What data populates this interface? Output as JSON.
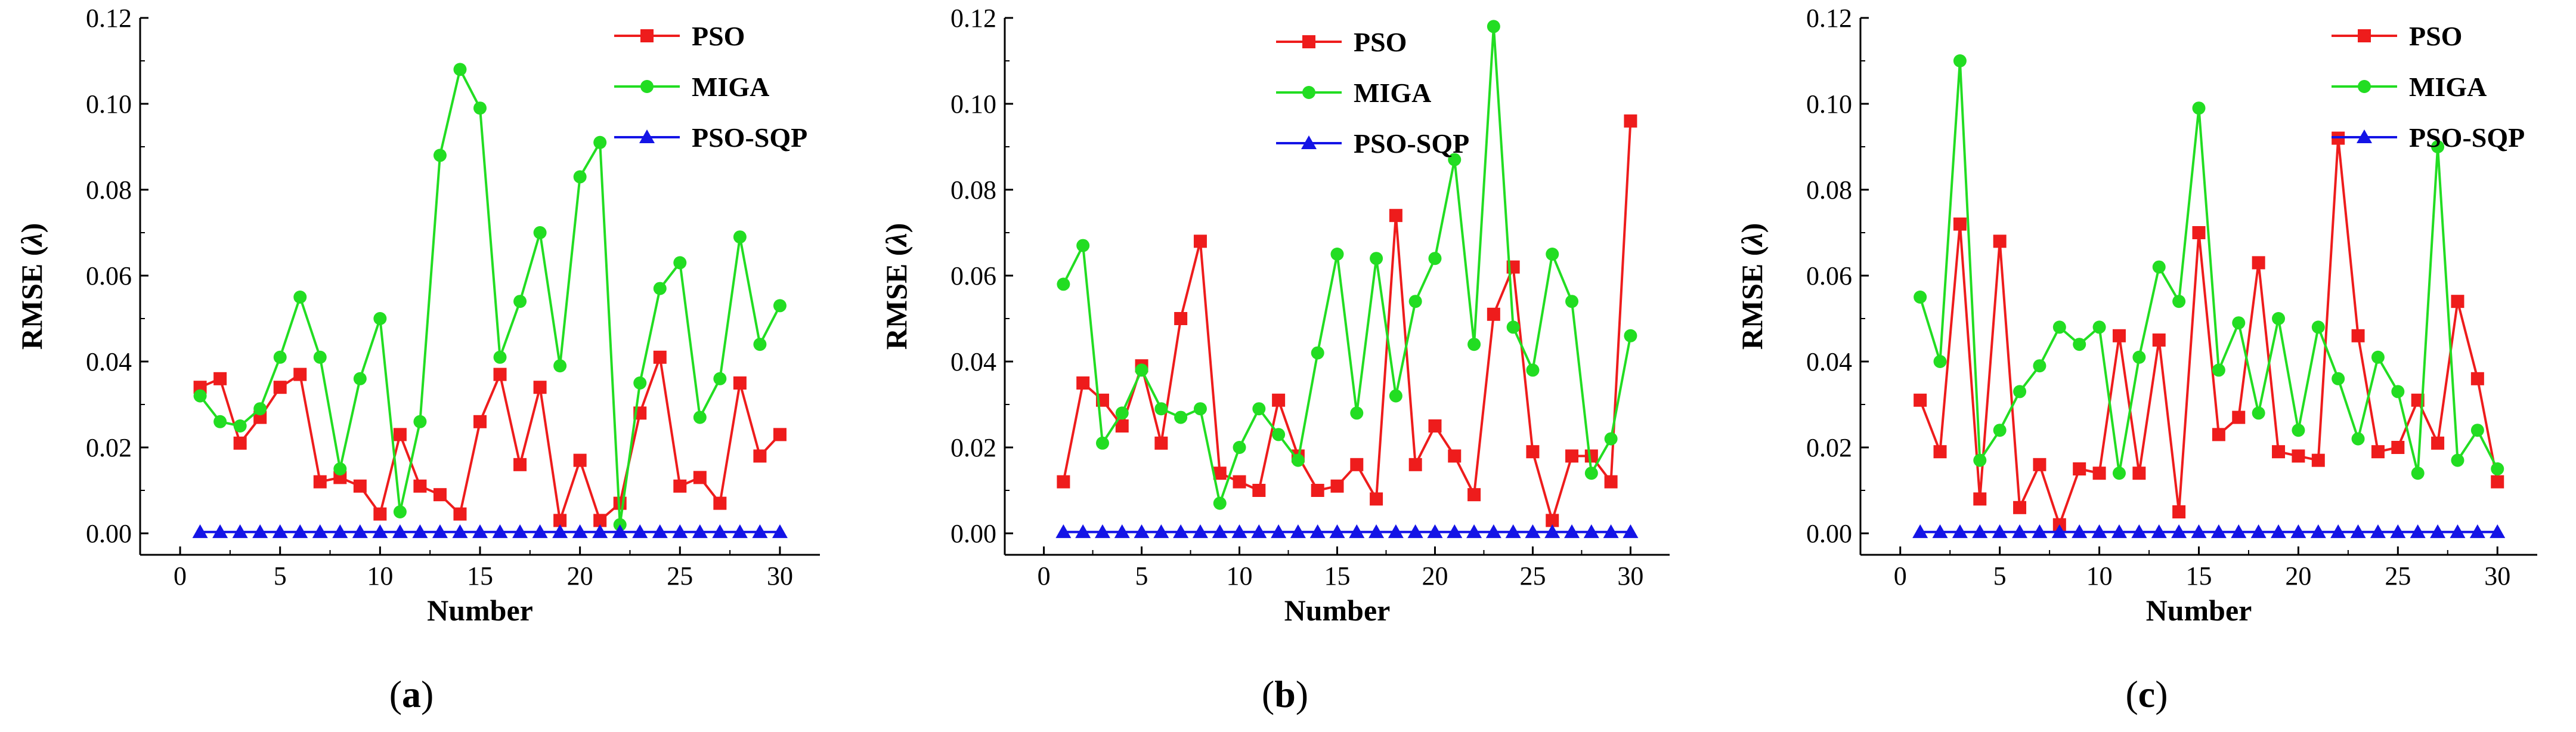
{
  "figure": {
    "panels": [
      "a",
      "b",
      "c"
    ]
  },
  "chart_data": [
    {
      "type": "line",
      "panel": "a",
      "caption_letter": "a",
      "xlabel": "Number",
      "ylabel_main": "RMSE (",
      "ylabel_sym": "λ",
      "ylabel_end": ")",
      "xlim": [
        -2,
        32
      ],
      "ylim": [
        -0.005,
        0.12
      ],
      "xticks": [
        0,
        5,
        10,
        15,
        20,
        25,
        30
      ],
      "yticks": [
        0.0,
        0.02,
        0.04,
        0.06,
        0.08,
        0.1,
        0.12
      ],
      "ytick_labels": [
        "0.00",
        "0.02",
        "0.04",
        "0.06",
        "0.08",
        "0.10",
        "0.12"
      ],
      "x": [
        1,
        2,
        3,
        4,
        5,
        6,
        7,
        8,
        9,
        10,
        11,
        12,
        13,
        14,
        15,
        16,
        17,
        18,
        19,
        20,
        21,
        22,
        23,
        24,
        25,
        26,
        27,
        28,
        29,
        30
      ],
      "series": [
        {
          "name": "PSO",
          "color": "#ee1c1c",
          "marker": "square",
          "values": [
            0.034,
            0.036,
            0.021,
            0.027,
            0.034,
            0.037,
            0.012,
            0.013,
            0.011,
            0.0045,
            0.023,
            0.011,
            0.009,
            0.0045,
            0.026,
            0.037,
            0.016,
            0.034,
            0.003,
            0.017,
            0.003,
            0.007,
            0.028,
            0.041,
            0.011,
            0.013,
            0.007,
            0.035,
            0.018,
            0.023
          ]
        },
        {
          "name": "MIGA",
          "color": "#22dd22",
          "marker": "circle",
          "values": [
            0.032,
            0.026,
            0.025,
            0.029,
            0.041,
            0.055,
            0.041,
            0.015,
            0.036,
            0.05,
            0.005,
            0.026,
            0.088,
            0.108,
            0.099,
            0.041,
            0.054,
            0.07,
            0.039,
            0.083,
            0.091,
            0.002,
            0.035,
            0.057,
            0.063,
            0.027,
            0.036,
            0.069,
            0.044,
            0.053
          ]
        },
        {
          "name": "PSO-SQP",
          "color": "#1414e6",
          "marker": "triangle",
          "values": [
            0.0003,
            0.0003,
            0.0003,
            0.0003,
            0.0003,
            0.0003,
            0.0003,
            0.0003,
            0.0003,
            0.0003,
            0.0003,
            0.0003,
            0.0003,
            0.0003,
            0.0003,
            0.0003,
            0.0003,
            0.0003,
            0.0003,
            0.0003,
            0.0003,
            0.0003,
            0.0003,
            0.0003,
            0.0003,
            0.0003,
            0.0003,
            0.0003,
            0.0003,
            0.0003
          ]
        }
      ],
      "legend_position": "top-right"
    },
    {
      "type": "line",
      "panel": "b",
      "caption_letter": "b",
      "xlabel": "Number",
      "ylabel_main": "RMSE (",
      "ylabel_sym": "λ",
      "ylabel_end": ")",
      "xlim": [
        -2,
        32
      ],
      "ylim": [
        -0.005,
        0.12
      ],
      "xticks": [
        0,
        5,
        10,
        15,
        20,
        25,
        30
      ],
      "yticks": [
        0.0,
        0.02,
        0.04,
        0.06,
        0.08,
        0.1,
        0.12
      ],
      "ytick_labels": [
        "0.00",
        "0.02",
        "0.04",
        "0.06",
        "0.08",
        "0.10",
        "0.12"
      ],
      "x": [
        1,
        2,
        3,
        4,
        5,
        6,
        7,
        8,
        9,
        10,
        11,
        12,
        13,
        14,
        15,
        16,
        17,
        18,
        19,
        20,
        21,
        22,
        23,
        24,
        25,
        26,
        27,
        28,
        29,
        30
      ],
      "series": [
        {
          "name": "PSO",
          "color": "#ee1c1c",
          "marker": "square",
          "values": [
            0.012,
            0.035,
            0.031,
            0.025,
            0.039,
            0.021,
            0.05,
            0.068,
            0.014,
            0.012,
            0.01,
            0.031,
            0.018,
            0.01,
            0.011,
            0.016,
            0.008,
            0.074,
            0.016,
            0.025,
            0.018,
            0.009,
            0.051,
            0.062,
            0.019,
            0.003,
            0.018,
            0.018,
            0.012,
            0.096
          ]
        },
        {
          "name": "MIGA",
          "color": "#22dd22",
          "marker": "circle",
          "values": [
            0.058,
            0.067,
            0.021,
            0.028,
            0.038,
            0.029,
            0.027,
            0.029,
            0.007,
            0.02,
            0.029,
            0.023,
            0.017,
            0.042,
            0.065,
            0.028,
            0.064,
            0.032,
            0.054,
            0.064,
            0.087,
            0.044,
            0.118,
            0.048,
            0.038,
            0.065,
            0.054,
            0.014,
            0.022,
            0.046
          ]
        },
        {
          "name": "PSO-SQP",
          "color": "#1414e6",
          "marker": "triangle",
          "values": [
            0.0003,
            0.0003,
            0.0003,
            0.0003,
            0.0003,
            0.0003,
            0.0003,
            0.0003,
            0.0003,
            0.0003,
            0.0003,
            0.0003,
            0.0003,
            0.0003,
            0.0003,
            0.0003,
            0.0003,
            0.0003,
            0.0003,
            0.0003,
            0.0003,
            0.0003,
            0.0003,
            0.0003,
            0.0003,
            0.0003,
            0.0003,
            0.0003,
            0.0003,
            0.0003
          ]
        }
      ],
      "legend_position": "top-right"
    },
    {
      "type": "line",
      "panel": "c",
      "caption_letter": "c",
      "xlabel": "Number",
      "ylabel_main": "RMSE (",
      "ylabel_sym": "λ",
      "ylabel_end": ")",
      "xlim": [
        -2,
        32
      ],
      "ylim": [
        -0.005,
        0.12
      ],
      "xticks": [
        0,
        5,
        10,
        15,
        20,
        25,
        30
      ],
      "yticks": [
        0.0,
        0.02,
        0.04,
        0.06,
        0.08,
        0.1,
        0.12
      ],
      "ytick_labels": [
        "0.00",
        "0.02",
        "0.04",
        "0.06",
        "0.08",
        "0.10",
        "0.12"
      ],
      "x": [
        1,
        2,
        3,
        4,
        5,
        6,
        7,
        8,
        9,
        10,
        11,
        12,
        13,
        14,
        15,
        16,
        17,
        18,
        19,
        20,
        21,
        22,
        23,
        24,
        25,
        26,
        27,
        28,
        29,
        30
      ],
      "series": [
        {
          "name": "PSO",
          "color": "#ee1c1c",
          "marker": "square",
          "values": [
            0.031,
            0.019,
            0.072,
            0.008,
            0.068,
            0.006,
            0.016,
            0.002,
            0.015,
            0.014,
            0.046,
            0.014,
            0.045,
            0.005,
            0.07,
            0.023,
            0.027,
            0.063,
            0.019,
            0.018,
            0.017,
            0.092,
            0.046,
            0.019,
            0.02,
            0.031,
            0.021,
            0.054,
            0.036,
            0.012
          ]
        },
        {
          "name": "MIGA",
          "color": "#22dd22",
          "marker": "circle",
          "values": [
            0.055,
            0.04,
            0.11,
            0.017,
            0.024,
            0.033,
            0.039,
            0.048,
            0.044,
            0.048,
            0.014,
            0.041,
            0.062,
            0.054,
            0.099,
            0.038,
            0.049,
            0.028,
            0.05,
            0.024,
            0.048,
            0.036,
            0.022,
            0.041,
            0.033,
            0.014,
            0.09,
            0.017,
            0.024,
            0.015
          ]
        },
        {
          "name": "PSO-SQP",
          "color": "#1414e6",
          "marker": "triangle",
          "values": [
            0.0003,
            0.0003,
            0.0003,
            0.0003,
            0.0003,
            0.0003,
            0.0003,
            0.0003,
            0.0003,
            0.0003,
            0.0003,
            0.0003,
            0.0003,
            0.0003,
            0.0003,
            0.0003,
            0.0003,
            0.0003,
            0.0003,
            0.0003,
            0.0003,
            0.0003,
            0.0003,
            0.0003,
            0.0003,
            0.0003,
            0.0003,
            0.0003,
            0.0003,
            0.0003
          ]
        }
      ],
      "legend_position": "top-right"
    }
  ]
}
